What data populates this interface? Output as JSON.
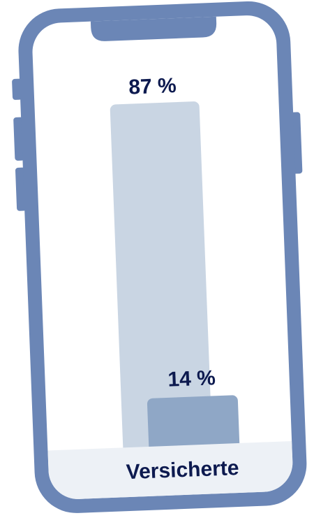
{
  "colors": {
    "phone_frame": "#6b86b6",
    "screen": "#ffffff",
    "bar_background_series": "#c9d5e3",
    "bar_foreground_series": "#8fa7c6",
    "footer_band": "#edf1f6",
    "text": "#0d1a4f"
  },
  "chart_data": {
    "type": "bar",
    "title": "",
    "xlabel": "",
    "ylabel": "",
    "ylim": [
      0,
      100
    ],
    "categories": [
      "Versicherte"
    ],
    "series": [
      {
        "values": [
          87
        ],
        "label": "87 %"
      },
      {
        "values": [
          14
        ],
        "label": "14 %"
      }
    ]
  }
}
